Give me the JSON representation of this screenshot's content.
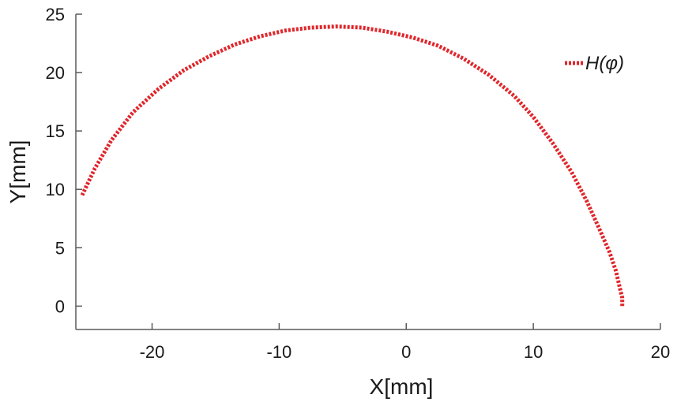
{
  "chart_data": {
    "type": "line",
    "xlabel": "X[mm]",
    "ylabel": "Y[mm]",
    "xlim": [
      -26,
      20
    ],
    "ylim": [
      -2,
      25
    ],
    "x_ticks": [
      -20,
      -10,
      0,
      10,
      20
    ],
    "y_ticks": [
      0,
      5,
      10,
      15,
      20,
      25
    ],
    "x_tick_labels": [
      "-20",
      "-10",
      "0",
      "10",
      "20"
    ],
    "y_tick_labels": [
      "0",
      "5",
      "10",
      "15",
      "20",
      "25"
    ],
    "grid": false,
    "legend_position": "top-right",
    "series": [
      {
        "name": "H(φ)",
        "color": "#e0262b",
        "style": "dotted",
        "x": [
          -25.5,
          -24.5,
          -23.2,
          -21.5,
          -19.5,
          -17.5,
          -15.5,
          -13.5,
          -11.5,
          -9.5,
          -7.5,
          -5.5,
          -3.5,
          -1.5,
          0.5,
          2.5,
          4.5,
          6.5,
          8.5,
          10.0,
          11.5,
          13.0,
          14.2,
          15.2,
          16.0,
          16.5,
          16.8,
          17.0,
          17.0
        ],
        "y": [
          9.5,
          11.8,
          14.2,
          16.6,
          18.6,
          20.2,
          21.4,
          22.4,
          23.1,
          23.6,
          23.85,
          23.95,
          23.85,
          23.5,
          23.0,
          22.3,
          21.2,
          19.8,
          18.0,
          16.2,
          14.0,
          11.5,
          9.0,
          6.6,
          4.6,
          3.0,
          1.6,
          0.7,
          0.0
        ]
      }
    ]
  }
}
